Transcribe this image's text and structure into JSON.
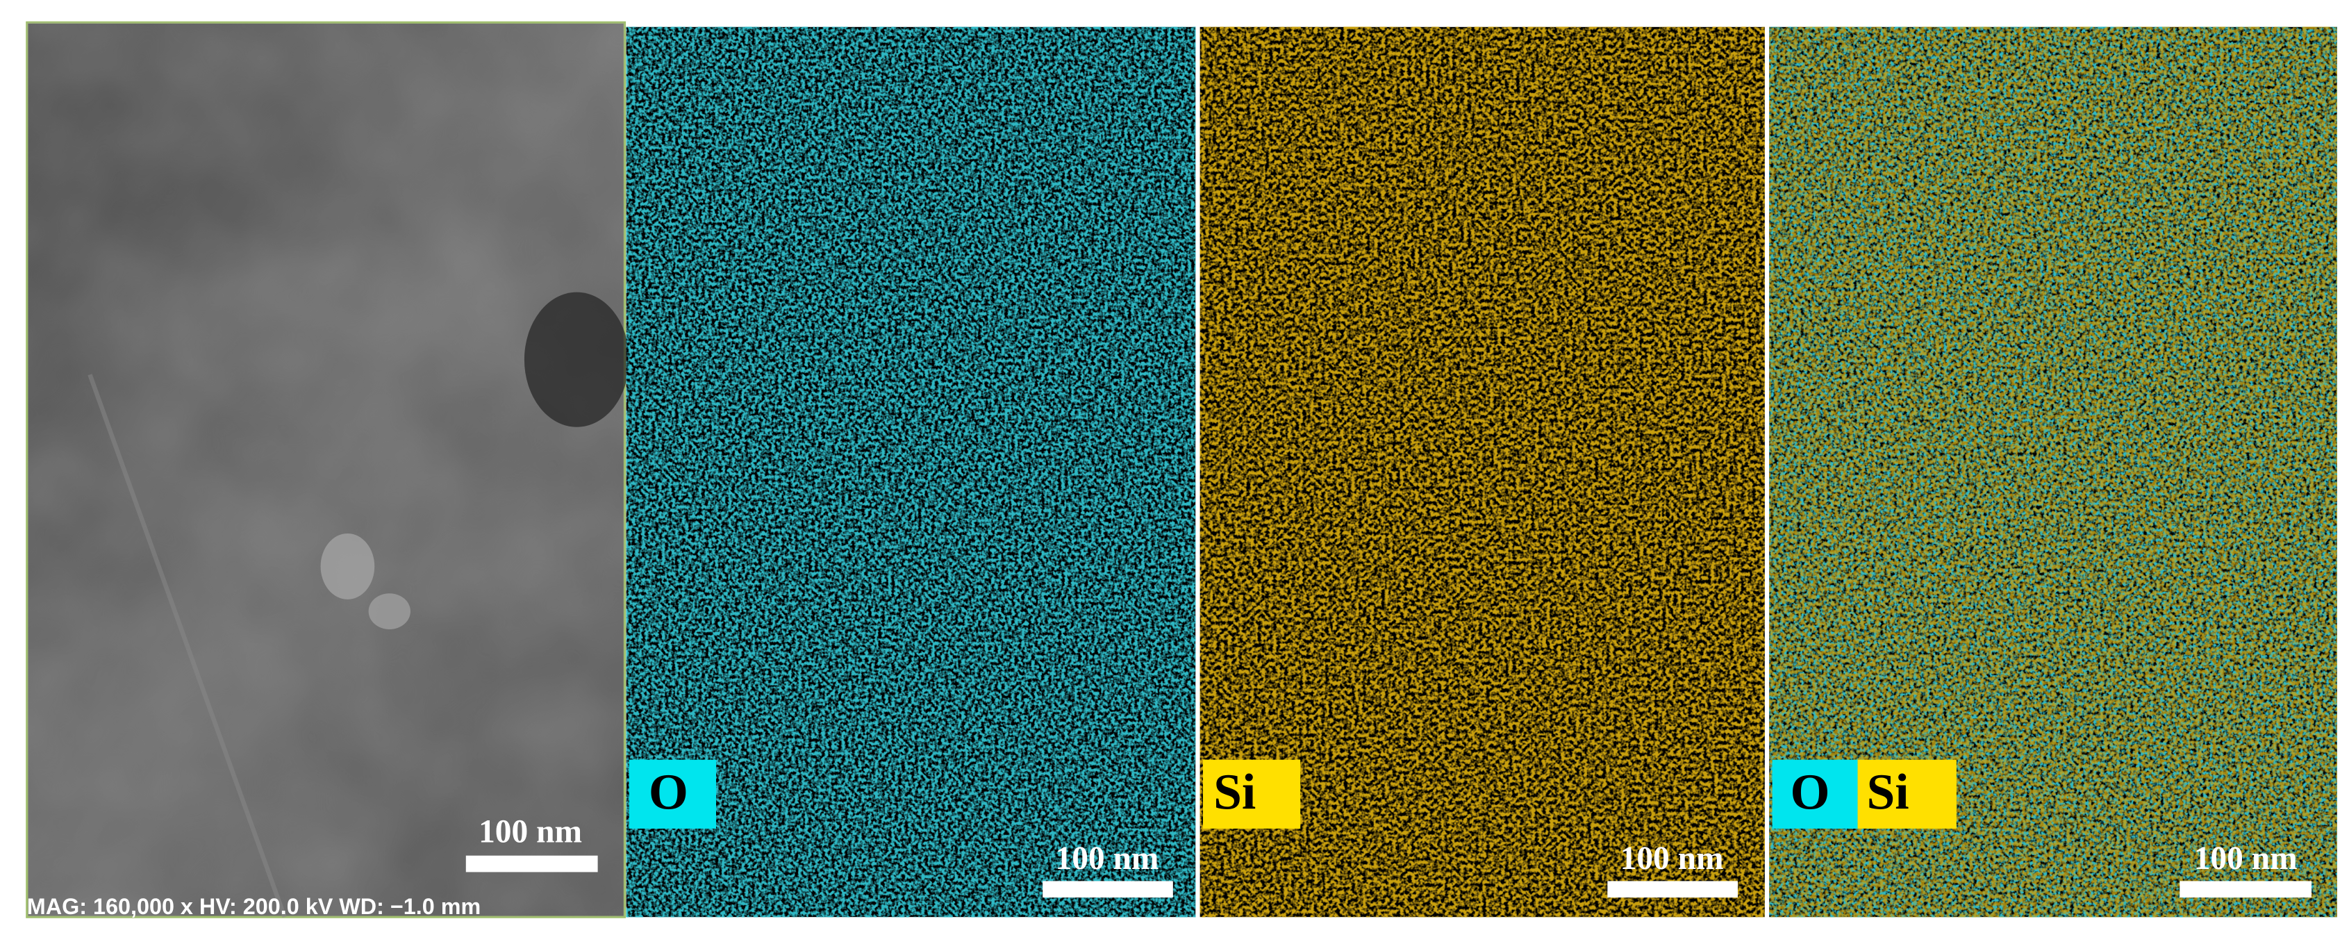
{
  "panels": [
    {
      "caption": "MAG: 160,000 x  HV: 200.0 kV  WD: −1.0 mm",
      "scale_bar": "100 nm"
    },
    {
      "labels": [
        "O"
      ],
      "scale_bar": "100 nm"
    },
    {
      "labels": [
        "Si"
      ],
      "scale_bar": "100 nm"
    },
    {
      "labels": [
        "O",
        "Si"
      ],
      "scale_bar": "100 nm"
    }
  ]
}
